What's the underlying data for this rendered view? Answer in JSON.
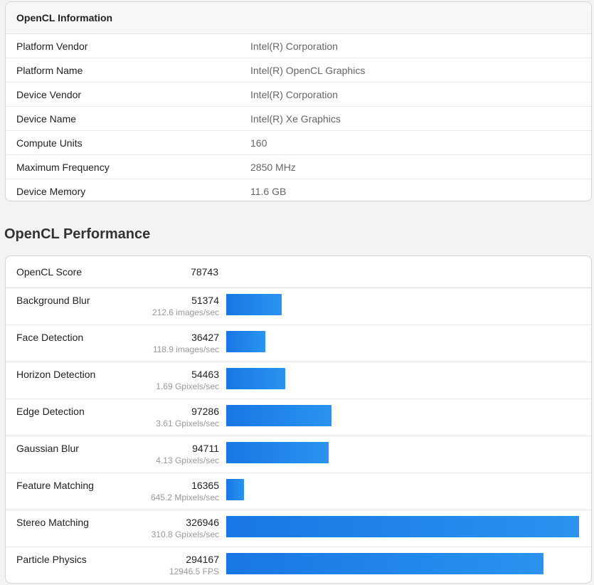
{
  "info": {
    "title": "OpenCL Information",
    "rows": [
      {
        "label": "Platform Vendor",
        "value": "Intel(R) Corporation"
      },
      {
        "label": "Platform Name",
        "value": "Intel(R) OpenCL Graphics"
      },
      {
        "label": "Device Vendor",
        "value": "Intel(R) Corporation"
      },
      {
        "label": "Device Name",
        "value": "Intel(R) Xe Graphics"
      },
      {
        "label": "Compute Units",
        "value": "160"
      },
      {
        "label": "Maximum Frequency",
        "value": "2850 MHz"
      },
      {
        "label": "Device Memory",
        "value": "11.6 GB"
      }
    ]
  },
  "performance": {
    "title": "OpenCL Performance",
    "score_label": "OpenCL Score",
    "score_value": "78743",
    "bar_color": "#1a7fe8",
    "benchmarks": [
      {
        "name": "Background Blur",
        "score": "51374",
        "rate": "212.6 images/sec",
        "value": 51374
      },
      {
        "name": "Face Detection",
        "score": "36427",
        "rate": "118.9 images/sec",
        "value": 36427
      },
      {
        "name": "Horizon Detection",
        "score": "54463",
        "rate": "1.69 Gpixels/sec",
        "value": 54463
      },
      {
        "name": "Edge Detection",
        "score": "97286",
        "rate": "3.61 Gpixels/sec",
        "value": 97286
      },
      {
        "name": "Gaussian Blur",
        "score": "94711",
        "rate": "4.13 Gpixels/sec",
        "value": 94711
      },
      {
        "name": "Feature Matching",
        "score": "16365",
        "rate": "645.2 Mpixels/sec",
        "value": 16365
      },
      {
        "name": "Stereo Matching",
        "score": "326946",
        "rate": "310.8 Gpixels/sec",
        "value": 326946
      },
      {
        "name": "Particle Physics",
        "score": "294167",
        "rate": "12946.5 FPS",
        "value": 294167
      }
    ]
  }
}
